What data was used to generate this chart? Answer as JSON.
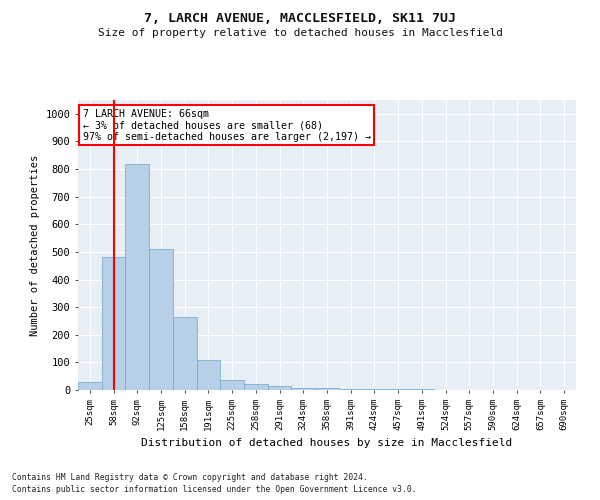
{
  "title1": "7, LARCH AVENUE, MACCLESFIELD, SK11 7UJ",
  "title2": "Size of property relative to detached houses in Macclesfield",
  "xlabel": "Distribution of detached houses by size in Macclesfield",
  "ylabel": "Number of detached properties",
  "footnote1": "Contains HM Land Registry data © Crown copyright and database right 2024.",
  "footnote2": "Contains public sector information licensed under the Open Government Licence v3.0.",
  "bar_labels": [
    "25sqm",
    "58sqm",
    "92sqm",
    "125sqm",
    "158sqm",
    "191sqm",
    "225sqm",
    "258sqm",
    "291sqm",
    "324sqm",
    "358sqm",
    "391sqm",
    "424sqm",
    "457sqm",
    "491sqm",
    "524sqm",
    "557sqm",
    "590sqm",
    "624sqm",
    "657sqm",
    "690sqm"
  ],
  "bar_values": [
    28,
    480,
    820,
    510,
    265,
    108,
    38,
    20,
    13,
    8,
    6,
    4,
    3,
    2,
    2,
    1,
    1,
    1,
    0,
    0,
    0
  ],
  "bar_color": "#b8cfe8",
  "bar_edgecolor": "#6aaad4",
  "vline_x": 1.0,
  "vline_color": "red",
  "annotation_text": "7 LARCH AVENUE: 66sqm\n← 3% of detached houses are smaller (68)\n97% of semi-detached houses are larger (2,197) →",
  "annotation_box_color": "white",
  "annotation_box_edgecolor": "red",
  "ylim": [
    0,
    1050
  ],
  "yticks": [
    0,
    100,
    200,
    300,
    400,
    500,
    600,
    700,
    800,
    900,
    1000
  ],
  "bg_color": "#ffffff",
  "plot_bg_color": "#e8eef6",
  "grid_color": "white"
}
